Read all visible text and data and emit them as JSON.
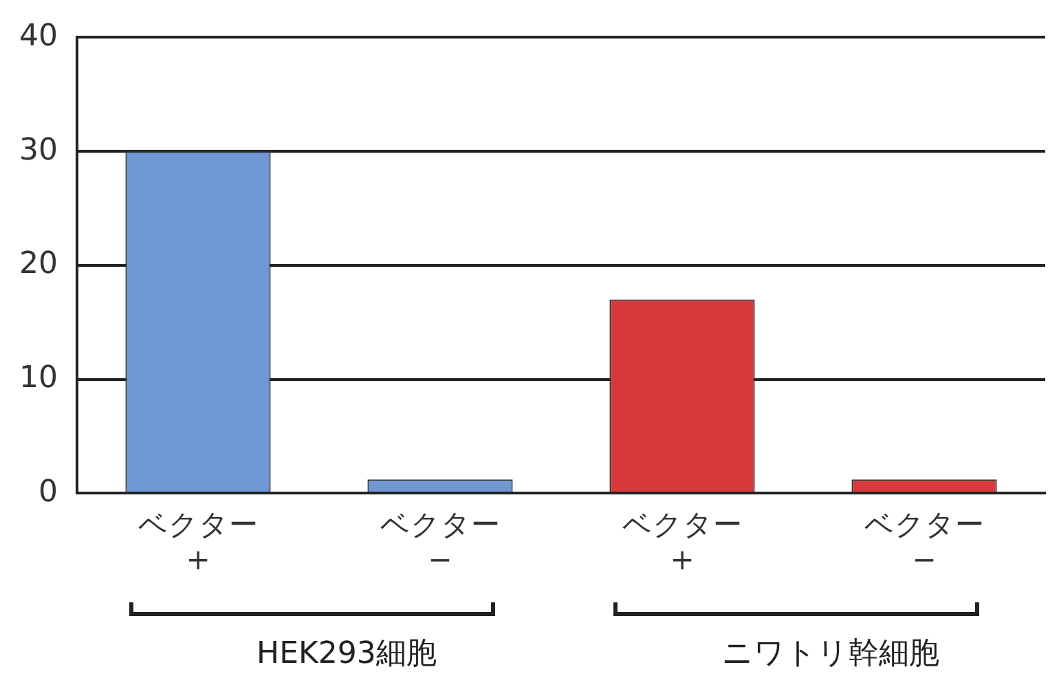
{
  "chart_data": {
    "type": "bar",
    "categories": [
      "ベクター\n+",
      "ベクター\n−",
      "ベクター\n+",
      "ベクター\n−"
    ],
    "values": [
      30,
      1.2,
      17,
      1.2
    ],
    "colors": [
      "#6f97d3",
      "#6f97d3",
      "#d83a3a",
      "#d83a3a"
    ],
    "ylim": [
      0,
      40
    ],
    "yticks": [
      0,
      10,
      20,
      30,
      40
    ],
    "grid": "y",
    "annotations": [
      "HEK293細胞",
      "ニワトリ幹細胞"
    ]
  }
}
